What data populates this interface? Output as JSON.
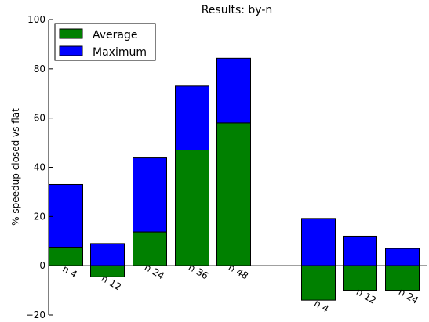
{
  "chart_data": {
    "type": "bar",
    "title": "Results: by-n",
    "ylabel": "% speedup closed vs flat",
    "ylim": [
      -20,
      100
    ],
    "yticks": [
      -20,
      0,
      20,
      40,
      60,
      80,
      100
    ],
    "categories": [
      "n 4",
      "n 12",
      "n 24",
      "n 36",
      "n 48",
      "n 4",
      "n 12",
      "n 24"
    ],
    "legend_position": "top-left",
    "grid": false,
    "series": [
      {
        "name": "Average",
        "color": "#008000",
        "values": [
          7.5,
          -4.5,
          13.7,
          47.0,
          58.0,
          -14.0,
          -10.0,
          -10.0
        ]
      },
      {
        "name": "Maximum",
        "color": "#0000ff",
        "values": [
          33.0,
          9.0,
          43.8,
          73.0,
          84.3,
          19.2,
          12.0,
          7.0
        ]
      }
    ]
  }
}
